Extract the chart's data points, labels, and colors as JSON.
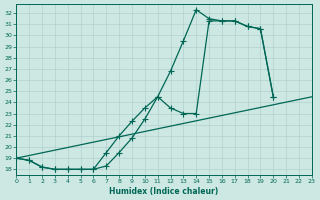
{
  "background_color": "#cde8e2",
  "grid_color": "#aacccc",
  "line_color": "#006655",
  "xlim": [
    0,
    23
  ],
  "ylim": [
    17.5,
    32.8
  ],
  "xticks": [
    0,
    1,
    2,
    3,
    4,
    5,
    6,
    7,
    8,
    9,
    10,
    11,
    12,
    13,
    14,
    15,
    16,
    17,
    18,
    19,
    20,
    21,
    22,
    23
  ],
  "yticks": [
    18,
    19,
    20,
    21,
    22,
    23,
    24,
    25,
    26,
    27,
    28,
    29,
    30,
    31,
    32
  ],
  "xlabel": "Humidex (Indice chaleur)",
  "line1_x": [
    0,
    1,
    2,
    3,
    4,
    5,
    6,
    7,
    8,
    9,
    10,
    11,
    12,
    13,
    14,
    15,
    16,
    17,
    18,
    19,
    20
  ],
  "line1_y": [
    19.0,
    18.8,
    18.2,
    18.0,
    18.0,
    18.0,
    18.0,
    18.3,
    19.5,
    20.8,
    22.5,
    24.5,
    26.8,
    29.5,
    32.3,
    31.5,
    31.3,
    31.3,
    30.8,
    30.6,
    24.5
  ],
  "line2_x": [
    0,
    1,
    2,
    3,
    4,
    5,
    6,
    7,
    8,
    9,
    10,
    11,
    12,
    13,
    14,
    15,
    16,
    17,
    18,
    19,
    20
  ],
  "line2_y": [
    19.0,
    18.8,
    18.2,
    18.0,
    18.0,
    18.0,
    18.0,
    19.5,
    21.0,
    22.3,
    23.5,
    24.5,
    23.5,
    23.0,
    23.0,
    31.3,
    31.3,
    31.3,
    30.8,
    30.6,
    24.5
  ],
  "line3_x": [
    0,
    23
  ],
  "line3_y": [
    19.0,
    24.5
  ],
  "marker": "+",
  "markersize": 4,
  "linewidth": 0.9
}
